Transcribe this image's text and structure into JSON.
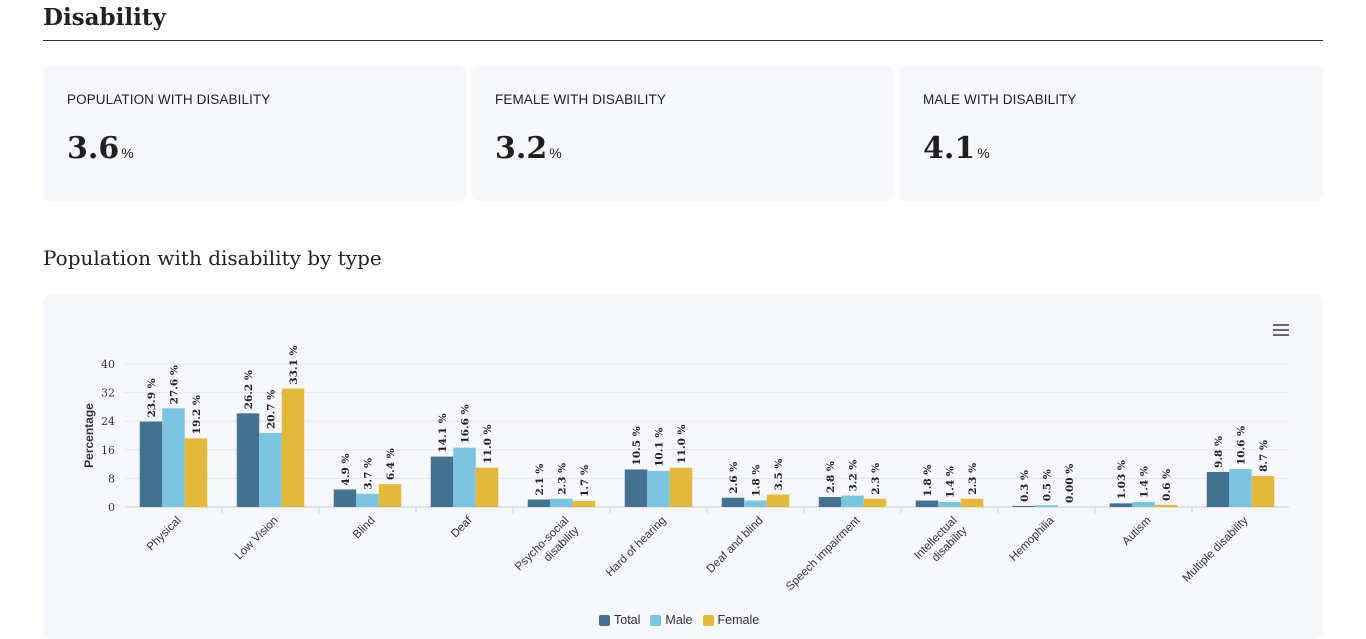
{
  "page": {
    "title": "Disability"
  },
  "stats": [
    {
      "label": "POPULATION WITH DISABILITY",
      "value": "3.6",
      "unit": "%"
    },
    {
      "label": "FEMALE WITH DISABILITY",
      "value": "3.2",
      "unit": "%"
    },
    {
      "label": "MALE WITH DISABILITY",
      "value": "4.1",
      "unit": "%"
    }
  ],
  "section": {
    "title": "Population with disability by type"
  },
  "menu": {
    "icon": "hamburger-menu-icon"
  },
  "chart_data": {
    "type": "bar",
    "ylabel": "Percentage",
    "ylim": [
      0,
      40
    ],
    "yticks": [
      "0",
      "8",
      "16",
      "24",
      "32",
      "40"
    ],
    "categories": [
      [
        "Physical"
      ],
      [
        "Low Vision"
      ],
      [
        "Blind"
      ],
      [
        "Deaf"
      ],
      [
        "Psycho-social",
        "disability"
      ],
      [
        "Hard of hearing"
      ],
      [
        "Deaf and blind"
      ],
      [
        "Speech impairment"
      ],
      [
        "Intellectual",
        "disability"
      ],
      [
        "Hemophilia"
      ],
      [
        "Autism"
      ],
      [
        "Multiple disability"
      ]
    ],
    "series": [
      {
        "name": "Total",
        "color": "#45728f",
        "values": [
          23.9,
          26.2,
          4.9,
          14.1,
          2.1,
          10.5,
          2.6,
          2.8,
          1.8,
          0.3,
          1.03,
          9.8
        ],
        "labels": [
          "23.9 %",
          "26.2 %",
          "4.9 %",
          "14.1 %",
          "2.1 %",
          "10.5 %",
          "2.6 %",
          "2.8 %",
          "1.8 %",
          "0.3 %",
          "1.03 %",
          "9.8 %"
        ]
      },
      {
        "name": "Male",
        "color": "#7cc4df",
        "values": [
          27.6,
          20.7,
          3.7,
          16.6,
          2.3,
          10.1,
          1.8,
          3.2,
          1.4,
          0.5,
          1.4,
          10.6
        ],
        "labels": [
          "27.6 %",
          "20.7 %",
          "3.7 %",
          "16.6 %",
          "2.3 %",
          "10.1 %",
          "1.8 %",
          "3.2 %",
          "1.4 %",
          "0.5 %",
          "1.4 %",
          "10.6 %"
        ]
      },
      {
        "name": "Female",
        "color": "#e2b93b",
        "values": [
          19.2,
          33.1,
          6.4,
          11.0,
          1.7,
          11.0,
          3.5,
          2.3,
          2.3,
          0.0,
          0.6,
          8.7
        ],
        "labels": [
          "19.2 %",
          "33.1 %",
          "6.4 %",
          "11.0 %",
          "1.7 %",
          "11.0 %",
          "3.5 %",
          "2.3 %",
          "2.3 %",
          "0.00 %",
          "0.6 %",
          "8.7 %"
        ]
      }
    ],
    "grid": true,
    "legend": "bottom-center"
  }
}
